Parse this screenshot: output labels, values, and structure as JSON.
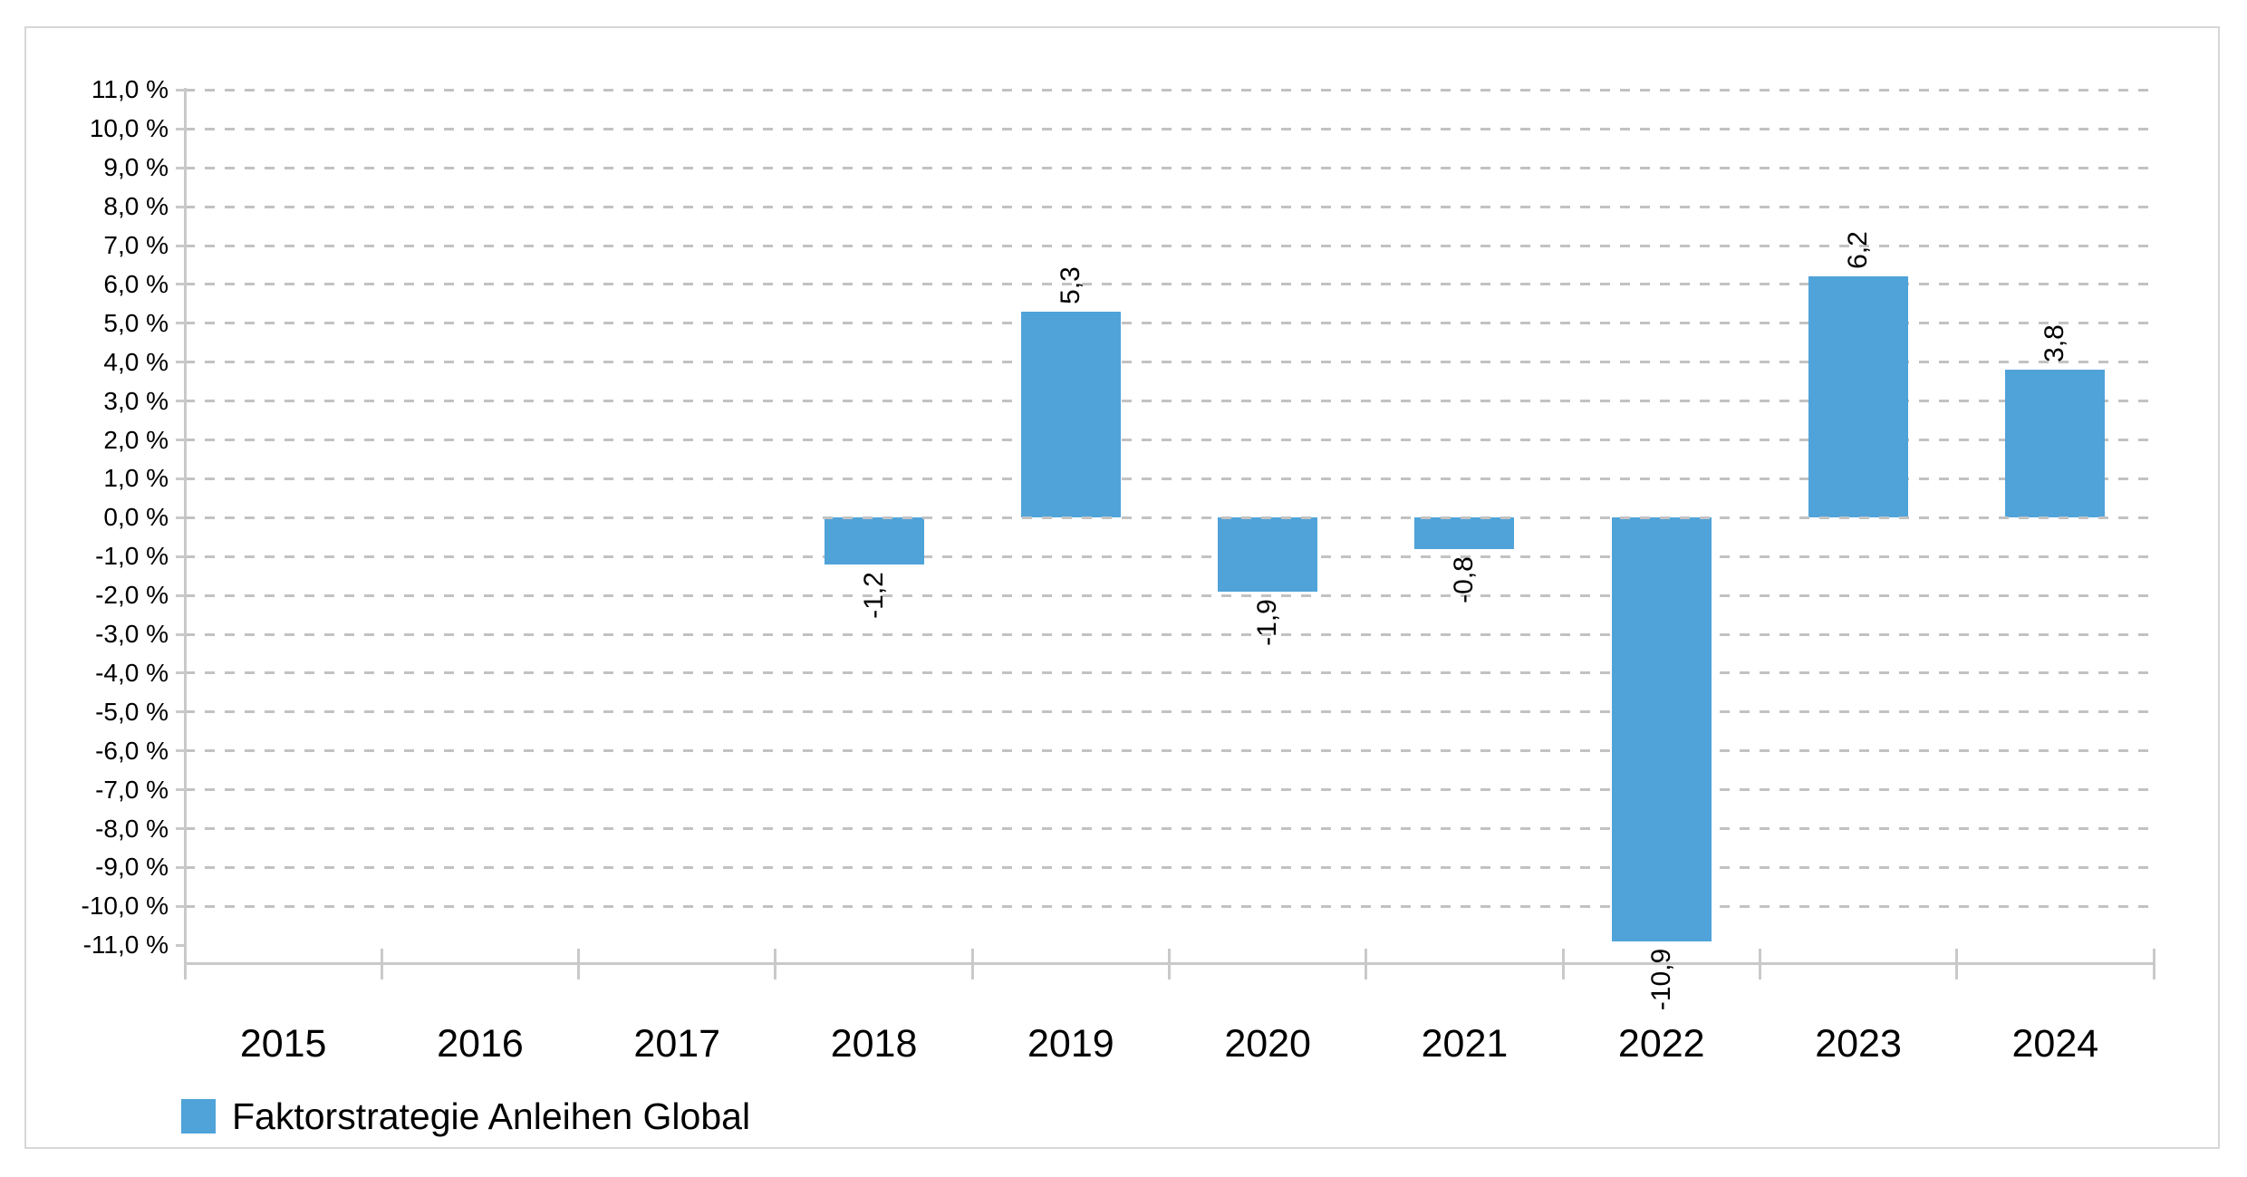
{
  "chart_data": {
    "type": "bar",
    "title": "",
    "categories": [
      "2015",
      "2016",
      "2017",
      "2018",
      "2019",
      "2020",
      "2021",
      "2022",
      "2023",
      "2024"
    ],
    "series": [
      {
        "name": "Faktorstrategie Anleihen Global",
        "values": [
          null,
          null,
          null,
          -1.2,
          5.3,
          -1.9,
          -0.8,
          -10.9,
          6.2,
          3.8
        ]
      }
    ],
    "data_labels": [
      "",
      "",
      "",
      "-1,2",
      "5,3",
      "-1,9",
      "-0,8",
      "-10,9",
      "6,2",
      "3,8"
    ],
    "yticks": [
      "11,0 %",
      "10,0 %",
      "9,0 %",
      "8,0 %",
      "7,0 %",
      "6,0 %",
      "5,0 %",
      "4,0 %",
      "3,0 %",
      "2,0 %",
      "1,0 %",
      "0,0 %",
      "-1,0 %",
      "-2,0 %",
      "-3,0 %",
      "-4,0 %",
      "-5,0 %",
      "-6,0 %",
      "-7,0 %",
      "-8,0 %",
      "-9,0 %",
      "-10,0 %",
      "-11,0 %"
    ],
    "ytick_values": [
      11,
      10,
      9,
      8,
      7,
      6,
      5,
      4,
      3,
      2,
      1,
      0,
      -1,
      -2,
      -3,
      -4,
      -5,
      -6,
      -7,
      -8,
      -9,
      -10,
      -11
    ],
    "ylim": [
      -11.5,
      11.0
    ],
    "gridline_min_value": -10,
    "xlabel": "",
    "ylabel": "",
    "grid": "horizontal-dashed",
    "legend_position": "bottom-left",
    "bar_color": "#4fa3d9",
    "grid_color": "#c2c2c2",
    "axis_color": "#c9c9c9",
    "value_label_rotation": -90
  },
  "legend": {
    "label": "Faktorstrategie Anleihen Global"
  }
}
